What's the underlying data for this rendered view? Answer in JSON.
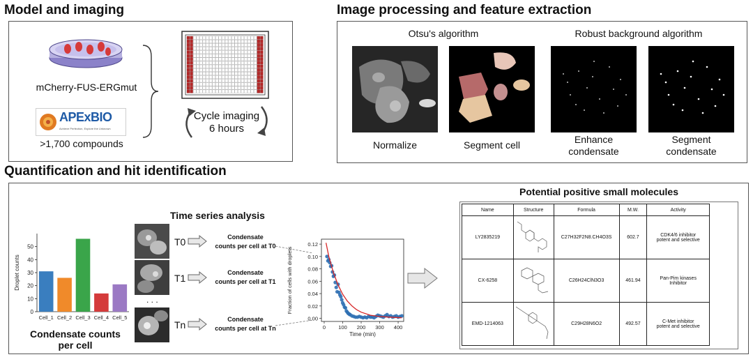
{
  "sections": {
    "model": "Model and imaging",
    "processing": "Image processing and feature extraction",
    "quant": "Quantification and hit identification"
  },
  "model": {
    "cell_line": "mCherry-FUS-ERGmut",
    "logo_name": "APExBIO",
    "logo_tagline": "Achieve Perfection, Explore the Unknown",
    "compounds": ">1,700 compounds",
    "cycle_line1": "Cycle imaging",
    "cycle_line2": "6 hours"
  },
  "processing": {
    "otsu_title": "Otsu's algorithm",
    "robust_title": "Robust background algorithm",
    "normalize": "Normalize",
    "segment_cell": "Segment cell",
    "enhance_line1": "Enhance",
    "enhance_line2": "condensate",
    "segment_line1": "Segment",
    "segment_line2": "condensate"
  },
  "quant": {
    "bar_caption_line1": "Condensate counts",
    "bar_caption_line2": "per cell",
    "time_series_title": "Time series analysis",
    "timepoints": [
      {
        "t": "T0",
        "text1": "Condensate",
        "text2": "counts per cell at T0"
      },
      {
        "t": "T1",
        "text1": "Condensate",
        "text2": "counts per cell at T1"
      },
      {
        "t": "Tn",
        "text1": "Condensate",
        "text2": "counts per cell at Tn"
      }
    ],
    "dots": ". . ."
  },
  "table": {
    "title": "Potential positive small molecules",
    "headers": [
      "Name",
      "Structure",
      "Formula",
      "M.W.",
      "Activity"
    ],
    "rows": [
      {
        "name": "LY2835219",
        "formula": "C27H32F2N8.CH4O3S",
        "mw": "602.7",
        "activity1": "CDK4/6 inhibitor",
        "activity2": "potent and selective"
      },
      {
        "name": "CX-6258",
        "formula": "C26H24ClN3O3",
        "mw": "461.94",
        "activity1": "Pan-Pim kinases",
        "activity2": "Inhibitor"
      },
      {
        "name": "EMD-1214063",
        "formula": "C29H28N6O2",
        "mw": "492.57",
        "activity1": "C-Met inhibitor",
        "activity2": "potent and selective"
      }
    ]
  },
  "chart_data": [
    {
      "type": "bar",
      "categories": [
        "Cell_1",
        "Cell_2",
        "Cell_3",
        "Cell_4",
        "Cell_5"
      ],
      "values": [
        31,
        26,
        56,
        14,
        21
      ],
      "colors": [
        "#3a7ebf",
        "#f08a2a",
        "#3aa54a",
        "#d43b3b",
        "#9b79c4"
      ],
      "ylabel": "Droplet counts",
      "ylim": [
        0,
        60
      ],
      "yticks": [
        0,
        10,
        20,
        30,
        40,
        50
      ]
    },
    {
      "type": "scatter",
      "xlabel": "Time (min)",
      "ylabel": "Fraction of cells with droplets",
      "xlim": [
        -15,
        430
      ],
      "ylim": [
        -0.005,
        0.128
      ],
      "xticks": [
        0,
        100,
        200,
        300,
        400
      ],
      "yticks": [
        0.0,
        0.02,
        0.04,
        0.06,
        0.08,
        0.1,
        0.12
      ],
      "ytick_labels": [
        "0.00",
        "0.02",
        "0.04",
        "0.06",
        "0.08",
        "0.10",
        "0.12"
      ],
      "point_color": "#2f6fb3",
      "fit_color": "#d62728",
      "points_x": [
        15,
        20,
        25,
        30,
        35,
        40,
        45,
        50,
        55,
        60,
        65,
        70,
        75,
        80,
        85,
        90,
        95,
        100,
        105,
        110,
        115,
        120,
        125,
        130,
        135,
        140,
        150,
        160,
        170,
        180,
        190,
        200,
        210,
        220,
        230,
        240,
        250,
        260,
        270,
        280,
        290,
        300,
        310,
        320,
        330,
        340,
        350,
        360,
        370,
        380,
        390,
        400,
        410,
        420
      ],
      "points_y": [
        0.1,
        0.093,
        0.095,
        0.09,
        0.084,
        0.085,
        0.075,
        0.068,
        0.07,
        0.058,
        0.05,
        0.043,
        0.055,
        0.042,
        0.038,
        0.035,
        0.03,
        0.025,
        0.022,
        0.018,
        0.017,
        0.012,
        0.01,
        0.008,
        0.007,
        0.006,
        0.004,
        0.003,
        0.002,
        0.002,
        0.003,
        0.002,
        0.001,
        0.002,
        0.001,
        0.003,
        0.002,
        0.002,
        0.001,
        0.003,
        0.005,
        0.004,
        0.003,
        0.002,
        0.004,
        0.006,
        0.003,
        0.004,
        0.002,
        0.003,
        0.004,
        0.002,
        0.003,
        0.004
      ],
      "fit_x": [
        10,
        25,
        50,
        75,
        100,
        125,
        150,
        175,
        200,
        250,
        300,
        350,
        420
      ],
      "fit_y": [
        0.122,
        0.1,
        0.074,
        0.054,
        0.039,
        0.028,
        0.02,
        0.014,
        0.01,
        0.005,
        0.003,
        0.002,
        0.001
      ]
    }
  ]
}
